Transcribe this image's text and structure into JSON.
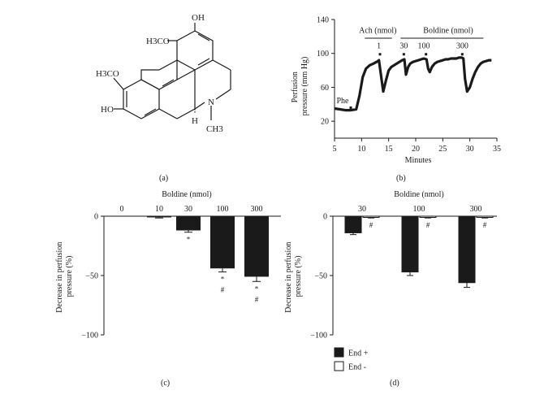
{
  "panel_labels": {
    "a": "(a)",
    "b": "(b)",
    "c": "(c)",
    "d": "(d)"
  },
  "structure": {
    "labels": [
      "OH",
      "H3CO",
      "H3CO",
      "HO",
      "H",
      "N",
      "CH3"
    ]
  },
  "colors": {
    "end_plus": "#1a1a1a",
    "end_minus": "#ffffff",
    "axis": "#1a1a1a"
  },
  "chart_data": [
    {
      "panel": "(b)",
      "type": "line",
      "xlabel": "Minutes",
      "ylabel": "Perfusion pressure (mm Hg)",
      "xlim": [
        5,
        35
      ],
      "ylim": [
        0,
        140
      ],
      "xticks": [
        5,
        10,
        15,
        20,
        25,
        30,
        35
      ],
      "yticks": [
        20,
        60,
        100,
        140
      ],
      "annotations": [
        {
          "text": "Phe",
          "x": 6.5,
          "y": 41
        },
        {
          "text": "Ach (nmol)",
          "x": 13,
          "y": 124
        },
        {
          "text": "Boldine (nmol)",
          "x": 26,
          "y": 124
        },
        {
          "text": "1",
          "x": 13.2,
          "y": 106
        },
        {
          "text": "30",
          "x": 17.8,
          "y": 106
        },
        {
          "text": "100",
          "x": 21.5,
          "y": 106
        },
        {
          "text": "300",
          "x": 28.6,
          "y": 106
        }
      ],
      "markers_x": [
        8,
        13.4,
        17.8,
        21.9,
        28.6
      ],
      "x": [
        5,
        6,
        7,
        8,
        9,
        9.6,
        10.2,
        10.8,
        11.5,
        12.2,
        12.8,
        13.2,
        13.5,
        14.0,
        14.5,
        15.0,
        15.5,
        16.0,
        16.5,
        17.0,
        17.5,
        17.9,
        18.2,
        18.6,
        19.0,
        19.5,
        20.0,
        20.5,
        21.0,
        21.5,
        22.0,
        22.3,
        22.6,
        23.0,
        23.5,
        24.0,
        24.5,
        25.0,
        25.5,
        26.0,
        26.5,
        27.0,
        27.5,
        28.0,
        28.5,
        28.8,
        29.1,
        29.5,
        30.0,
        30.5,
        31.0,
        31.5,
        32.0,
        32.5,
        33.0,
        33.5,
        34.0
      ],
      "y": [
        35,
        34,
        33,
        33,
        34,
        50,
        72,
        82,
        86,
        88,
        90,
        92,
        78,
        55,
        68,
        80,
        84,
        86,
        88,
        90,
        92,
        93,
        75,
        84,
        88,
        90,
        91,
        92,
        93,
        94,
        93,
        82,
        78,
        84,
        88,
        90,
        91,
        92,
        93,
        93,
        94,
        94,
        94,
        95,
        95,
        94,
        70,
        55,
        60,
        70,
        78,
        84,
        88,
        90,
        91,
        92,
        92
      ]
    },
    {
      "panel": "(c)",
      "type": "bar",
      "title": "Boldine (nmol)",
      "ylabel": "Decrease in perfusion pressure (%)",
      "categories": [
        "0",
        "10",
        "30",
        "100",
        "300"
      ],
      "values": [
        0,
        -1,
        -12,
        -44,
        -51
      ],
      "errors": [
        0,
        0.5,
        1.5,
        3,
        4
      ],
      "sig_marks": [
        "",
        "",
        "*",
        "*\n#",
        "*\n#"
      ],
      "ylim": [
        -100,
        0
      ],
      "yticks": [
        0,
        -50,
        -100
      ]
    },
    {
      "panel": "(d)",
      "type": "bar",
      "title": "Boldine (nmol)",
      "ylabel": "Decrease in perfusion pressure (%)",
      "categories": [
        "30",
        "100",
        "300"
      ],
      "series": [
        {
          "name": "End +",
          "values": [
            -14,
            -47,
            -56
          ],
          "errors": [
            1.5,
            3,
            4
          ]
        },
        {
          "name": "End -",
          "values": [
            -1,
            -1,
            -1
          ],
          "errors": [
            0.5,
            0.5,
            0.5
          ]
        }
      ],
      "sig_marks": [
        "#",
        "#",
        "#"
      ],
      "ylim": [
        -100,
        0
      ],
      "yticks": [
        0,
        -50,
        -100
      ],
      "legend": "bottom-left"
    }
  ]
}
